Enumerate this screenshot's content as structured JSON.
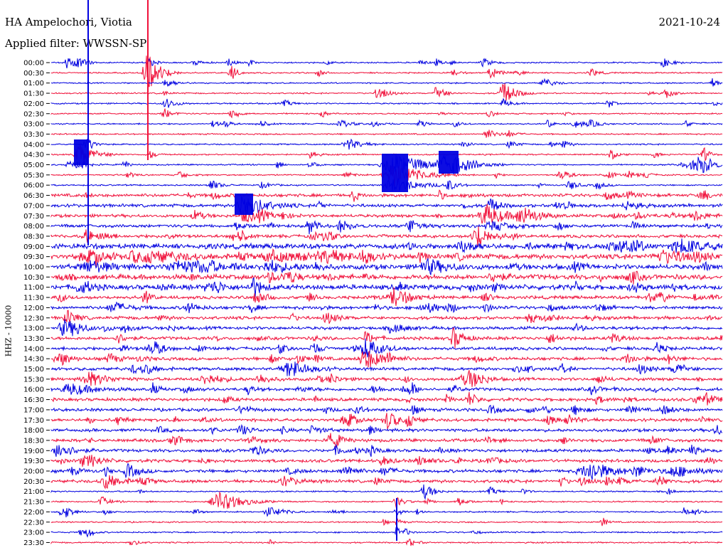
{
  "header": {
    "station": "HA Ampelochori, Viotia",
    "date": "2021-10-24",
    "filter_label": "Applied filter: WWSSN-SP"
  },
  "chart_data": {
    "type": "line",
    "title": "HA Ampelochori, Viotia",
    "subtitle": "Applied filter: WWSSN-SP",
    "date": "2021-10-24",
    "ylabel": "HHZ - 10000",
    "xlabel": "",
    "grid": false,
    "legend": "none",
    "row_labels": [
      "00:00",
      "00:30",
      "01:00",
      "01:30",
      "02:00",
      "02:30",
      "03:00",
      "03:30",
      "04:00",
      "04:30",
      "05:00",
      "05:30",
      "06:00",
      "06:30",
      "07:00",
      "07:30",
      "08:00",
      "08:30",
      "09:00",
      "09:30",
      "10:00",
      "10:30",
      "11:00",
      "11:30",
      "12:00",
      "12:30",
      "13:00",
      "13:30",
      "14:00",
      "14:30",
      "15:00",
      "15:30",
      "16:00",
      "16:30",
      "17:00",
      "17:30",
      "18:00",
      "18:30",
      "19:00",
      "19:30",
      "20:00",
      "20:30",
      "21:00",
      "21:30",
      "22:00",
      "22:30",
      "23:00",
      "23:30"
    ],
    "colors": [
      "#0000e0",
      "#f0103a"
    ],
    "tick_color": "#000000"
  }
}
